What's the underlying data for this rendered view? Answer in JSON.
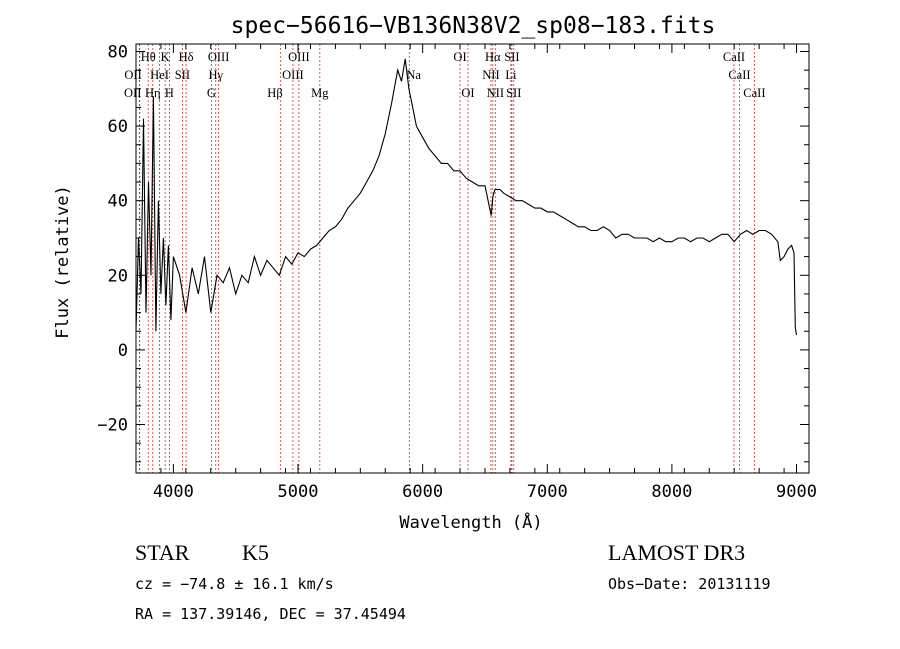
{
  "chart_data": {
    "type": "line",
    "title": "spec−56616−VB136N38V2_sp08−183.fits",
    "xlabel": "Wavelength (Å)",
    "ylabel": "Flux (relative)",
    "xlim": [
      3700,
      9100
    ],
    "ylim": [
      -33,
      82
    ],
    "xticks": [
      4000,
      5000,
      6000,
      7000,
      8000,
      9000
    ],
    "xtick_labels": [
      "4000",
      "5000",
      "6000",
      "7000",
      "8000",
      "9000"
    ],
    "yticks": [
      -20,
      0,
      20,
      40,
      60,
      80
    ],
    "ytick_labels": [
      "−20",
      "0",
      "20",
      "40",
      "60",
      "80"
    ],
    "series": [
      {
        "name": "flux",
        "x": [
          3700,
          3720,
          3740,
          3760,
          3780,
          3800,
          3820,
          3840,
          3860,
          3880,
          3900,
          3920,
          3940,
          3960,
          3980,
          4000,
          4050,
          4100,
          4150,
          4200,
          4250,
          4300,
          4350,
          4400,
          4450,
          4500,
          4550,
          4600,
          4650,
          4700,
          4750,
          4800,
          4850,
          4900,
          4950,
          5000,
          5050,
          5100,
          5150,
          5200,
          5250,
          5300,
          5350,
          5400,
          5450,
          5500,
          5550,
          5600,
          5650,
          5700,
          5750,
          5800,
          5830,
          5860,
          5890,
          5920,
          5950,
          6000,
          6050,
          6100,
          6150,
          6200,
          6250,
          6300,
          6350,
          6400,
          6450,
          6500,
          6550,
          6563,
          6580,
          6620,
          6650,
          6700,
          6750,
          6800,
          6850,
          6900,
          6950,
          7000,
          7050,
          7100,
          7150,
          7200,
          7250,
          7300,
          7350,
          7400,
          7450,
          7500,
          7550,
          7600,
          7650,
          7700,
          7750,
          7800,
          7850,
          7900,
          7950,
          8000,
          8050,
          8100,
          8150,
          8200,
          8250,
          8300,
          8350,
          8400,
          8450,
          8500,
          8550,
          8600,
          8650,
          8700,
          8750,
          8800,
          8850,
          8870,
          8900,
          8930,
          8960,
          8980,
          8990,
          9000
        ],
        "values": [
          5,
          30,
          15,
          62,
          10,
          45,
          20,
          68,
          5,
          40,
          15,
          30,
          12,
          28,
          8,
          25,
          20,
          10,
          22,
          15,
          25,
          10,
          20,
          18,
          22,
          15,
          20,
          18,
          25,
          20,
          24,
          22,
          20,
          25,
          23,
          26,
          25,
          27,
          28,
          30,
          32,
          33,
          35,
          38,
          40,
          42,
          45,
          48,
          52,
          58,
          66,
          75,
          72,
          78,
          70,
          65,
          60,
          57,
          54,
          52,
          50,
          50,
          48,
          48,
          46,
          45,
          44,
          44,
          36,
          41,
          43,
          43,
          42,
          41,
          40,
          40,
          39,
          38,
          38,
          37,
          37,
          36,
          35,
          34,
          33,
          33,
          32,
          32,
          33,
          32,
          30,
          31,
          31,
          30,
          30,
          30,
          29,
          30,
          29,
          29,
          30,
          30,
          29,
          30,
          30,
          29,
          30,
          31,
          31,
          29,
          31,
          32,
          31,
          32,
          32,
          31,
          29,
          24,
          25,
          27,
          28,
          26,
          6,
          4
        ]
      }
    ],
    "line_markers": [
      {
        "label": "OII",
        "wavelength": 3727,
        "row": 3,
        "align": "end"
      },
      {
        "label": "Hη",
        "wavelength": 3835,
        "row": 3,
        "align": "middle"
      },
      {
        "label": "H",
        "wavelength": 3968,
        "row": 3,
        "align": "middle"
      },
      {
        "label": "G",
        "wavelength": 4305,
        "row": 3,
        "align": "middle"
      },
      {
        "label": "Hβ",
        "wavelength": 4861,
        "row": 3,
        "align": "end"
      },
      {
        "label": "Mg",
        "wavelength": 5175,
        "row": 3,
        "align": "middle"
      },
      {
        "label": "OI",
        "wavelength": 6364,
        "row": 3,
        "align": "middle"
      },
      {
        "label": "NII",
        "wavelength": 6583,
        "row": 3,
        "align": "middle"
      },
      {
        "label": "SII",
        "wavelength": 6731,
        "row": 3,
        "align": "middle"
      },
      {
        "label": "CaII",
        "wavelength": 8662,
        "row": 3,
        "align": "middle"
      },
      {
        "label": "OII",
        "wavelength": 3730,
        "row": 2,
        "align": "end"
      },
      {
        "label": "HeI",
        "wavelength": 3889,
        "row": 2,
        "align": "middle"
      },
      {
        "label": "SII",
        "wavelength": 4072,
        "row": 2,
        "align": "middle"
      },
      {
        "label": "Hγ",
        "wavelength": 4340,
        "row": 2,
        "align": "middle"
      },
      {
        "label": "OIII",
        "wavelength": 4959,
        "row": 2,
        "align": "middle"
      },
      {
        "label": "Na",
        "wavelength": 5893,
        "row": 2,
        "align": "start"
      },
      {
        "label": "NII",
        "wavelength": 6548,
        "row": 2,
        "align": "middle"
      },
      {
        "label": "Li",
        "wavelength": 6708,
        "row": 2,
        "align": "middle"
      },
      {
        "label": "CaII",
        "wavelength": 8542,
        "row": 2,
        "align": "middle"
      },
      {
        "label": "Hθ",
        "wavelength": 3798,
        "row": 1,
        "align": "middle"
      },
      {
        "label": "K",
        "wavelength": 3934,
        "row": 1,
        "align": "middle"
      },
      {
        "label": "Hδ",
        "wavelength": 4102,
        "row": 1,
        "align": "middle"
      },
      {
        "label": "OIII",
        "wavelength": 4363,
        "row": 1,
        "align": "middle"
      },
      {
        "label": "OIII",
        "wavelength": 5007,
        "row": 1,
        "align": "middle"
      },
      {
        "label": "OI",
        "wavelength": 6300,
        "row": 1,
        "align": "middle"
      },
      {
        "label": "Hα",
        "wavelength": 6563,
        "row": 1,
        "align": "middle"
      },
      {
        "label": "SII",
        "wavelength": 6716,
        "row": 1,
        "align": "middle"
      },
      {
        "label": "CaII",
        "wavelength": 8498,
        "row": 1,
        "align": "middle"
      }
    ]
  },
  "info": {
    "class": "STAR",
    "subclass": "K5",
    "survey": "LAMOST DR3",
    "cz": "cz = −74.8 ± 16.1 km/s",
    "obs_date": "Obs−Date: 20131119",
    "coords": "RA = 137.39146, DEC =  37.45494"
  }
}
